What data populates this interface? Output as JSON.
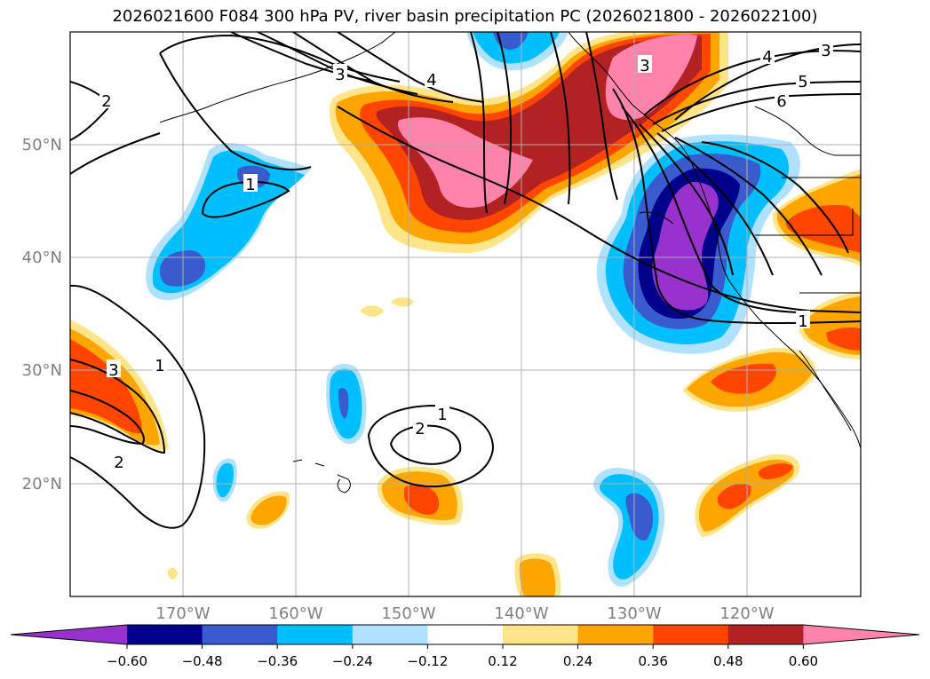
{
  "title": "2026021600 F084 300 hPa PV, river basin precipitation PC (2026021800 - 2026022100)",
  "map": {
    "lat_labels": [
      "50°N",
      "40°N",
      "30°N",
      "20°N"
    ],
    "lon_labels": [
      "170°W",
      "160°W",
      "150°W",
      "140°W",
      "130°W",
      "120°W"
    ],
    "contour_labels": [
      "1",
      "1",
      "1",
      "1",
      "2",
      "2",
      "2",
      "3",
      "3",
      "3",
      "3",
      "4",
      "4",
      "5",
      "6"
    ]
  },
  "colorbar": {
    "ticks": [
      "−0.60",
      "−0.48",
      "−0.36",
      "−0.24",
      "−0.12",
      "0.12",
      "0.24",
      "0.36",
      "0.48",
      "0.60"
    ],
    "colors": [
      "#9932cc",
      "#00008b",
      "#3a5bcd",
      "#00bfff",
      "#b0e2ff",
      "#ffffff",
      "#ffe58a",
      "#ffa500",
      "#ff4500",
      "#b22222",
      "#ff83aa"
    ]
  },
  "colors": {
    "purple": "#9932cc",
    "navy": "#00008b",
    "royal": "#3a5bcd",
    "sky": "#00bfff",
    "pale_blue": "#b0e2ff",
    "pale_yellow": "#ffe58a",
    "orange": "#ffa500",
    "red_orange": "#ff4500",
    "firebrick": "#b22222",
    "pink": "#ff83aa"
  }
}
